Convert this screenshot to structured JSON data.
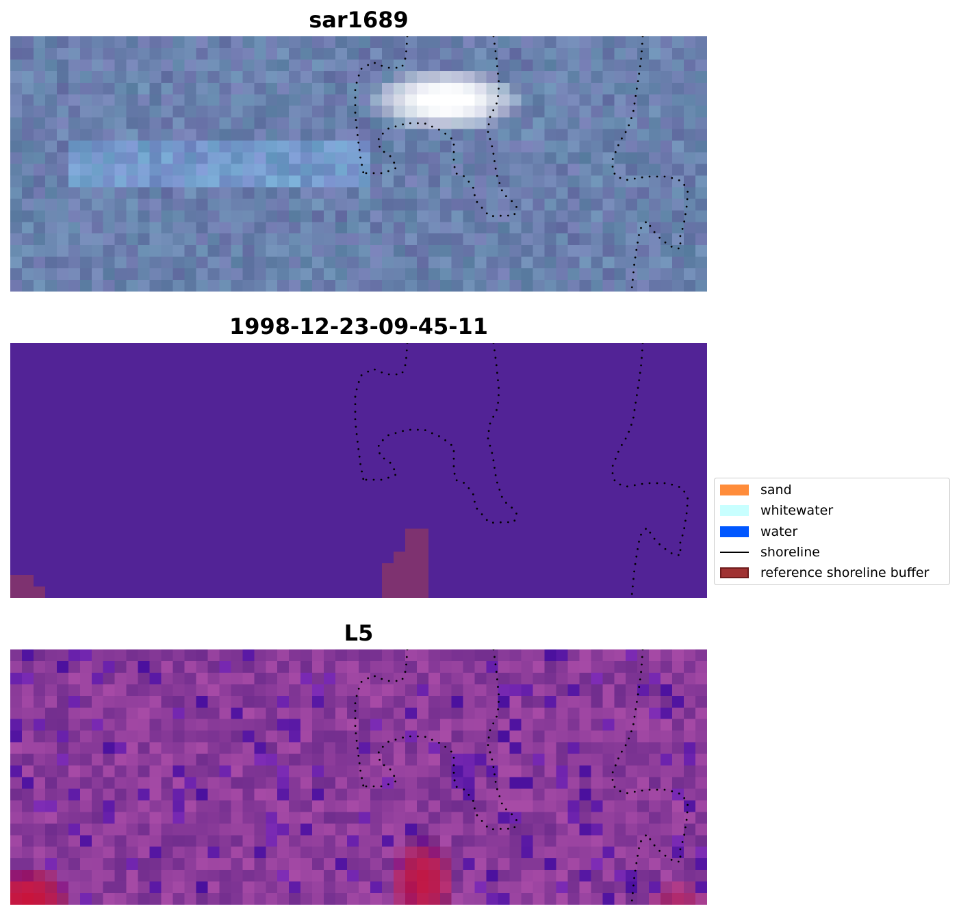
{
  "panels": [
    {
      "title": "sar1689",
      "style": "sar"
    },
    {
      "title": "1998-12-23-09-45-11",
      "style": "classified"
    },
    {
      "title": "L5",
      "style": "l5"
    }
  ],
  "legend": {
    "items": [
      {
        "label": "sand",
        "color": "#ff8c3a",
        "kind": "patch"
      },
      {
        "label": "whitewater",
        "color": "#c8ffff",
        "kind": "patch"
      },
      {
        "label": "water",
        "color": "#0057ff",
        "kind": "patch"
      },
      {
        "label": "shoreline",
        "color": "#000000",
        "kind": "line"
      },
      {
        "label": "reference shoreline buffer",
        "color": "#a03232",
        "kind": "patch-outlined"
      }
    ]
  },
  "colors": {
    "sar_base": "#6a80ad",
    "classified_base": "#522396",
    "buffer_tint": "#7e3270",
    "l5_base": "#8c3c9a",
    "shoreline_dots": "#000000"
  }
}
